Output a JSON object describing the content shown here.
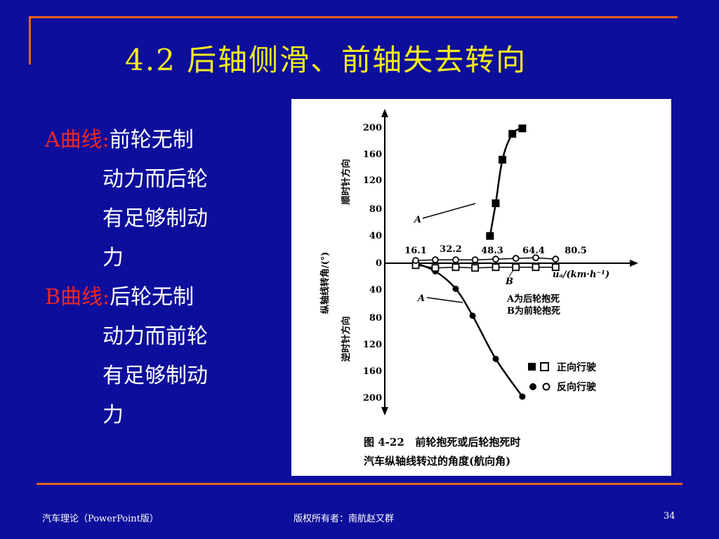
{
  "slide": {
    "title": "4.2 后轴侧滑、前轴失去转向",
    "bullets": [
      {
        "label": "A曲线:",
        "line1": "前轮无制",
        "cont": [
          "动力而后轮",
          "有足够制动",
          "力"
        ]
      },
      {
        "label": "B曲线:",
        "line1": "后轮无制",
        "cont": [
          "动力而前轮",
          "有足够制动",
          "力"
        ]
      }
    ]
  },
  "figure": {
    "ylabel": "纵轴线转角/(°)",
    "upper_label": "顺时针方向",
    "lower_label": "逆时针方向",
    "y_ticks_upper": [
      "200",
      "160",
      "120",
      "80",
      "40"
    ],
    "y_tick_zero": "0",
    "y_ticks_lower": [
      "40",
      "80",
      "120",
      "160",
      "200"
    ],
    "x_ticks": [
      "16.1",
      "32.2",
      "48.3",
      "64.4",
      "80.5"
    ],
    "x_axis_label": "uₐ/(km·h⁻¹)",
    "curve_label_a_upper": "A",
    "curve_label_a_lower": "A",
    "curve_label_b": "B",
    "legend_a": "A为后轮抱死",
    "legend_b": "B为前轮抱死",
    "legend_forward": "正向行驶",
    "legend_reverse": "反向行驶",
    "caption_line1": "图 4-22   前轮抱死或后轮抱死时",
    "caption_line2": "汽车纵轴线转过的角度(航向角)"
  },
  "chart_data": {
    "type": "line",
    "xlabel": "uₐ/(km·h⁻¹)",
    "ylabel": "纵轴线转角/(°)",
    "x_ticks": [
      16.1,
      32.2,
      48.3,
      64.4,
      80.5
    ],
    "ylim": [
      -200,
      200
    ],
    "series": [
      {
        "name": "A",
        "x": [
          46,
          48.3,
          51,
          55,
          59
        ],
        "y": [
          40,
          88,
          152,
          190,
          198
        ]
      },
      {
        "name": "A",
        "x": [
          16.1,
          24,
          32.2,
          39,
          48.3,
          59
        ],
        "y": [
          0,
          -12,
          -38,
          -78,
          -142,
          -198
        ]
      },
      {
        "name": "B",
        "x": [
          16.1,
          24,
          32.2,
          40,
          48.3,
          56.4,
          64.4,
          72.4
        ],
        "y": [
          -3,
          -7,
          -6,
          -7,
          -6,
          -6,
          -6,
          -6
        ]
      },
      {
        "name": "B",
        "x": [
          16.1,
          24,
          32.2,
          40,
          48.3,
          56.4,
          64.4,
          72.4
        ],
        "y": [
          4,
          5,
          5,
          5,
          6,
          7,
          8,
          6
        ]
      }
    ]
  },
  "footer": {
    "left": "汽车理论（PowerPoint版）",
    "center": "版权所有者：南航赵又群",
    "page": "34"
  }
}
